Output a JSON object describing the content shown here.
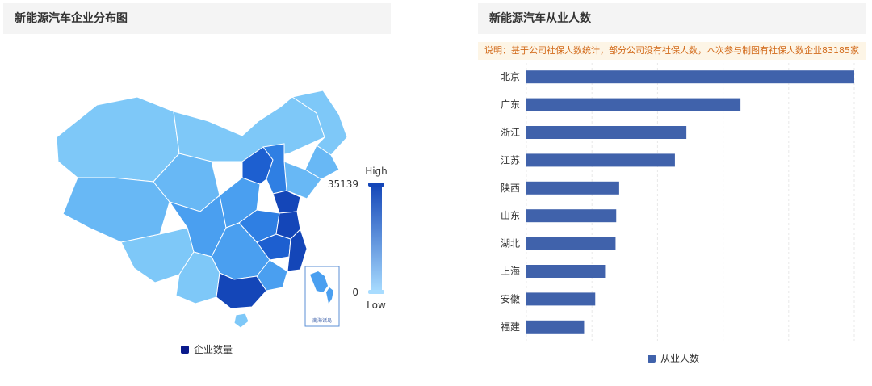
{
  "left_panel": {
    "title": "新能源汽车企业分布图",
    "legend_label": "企业数量",
    "legend_color": "#0a1a8c",
    "visual_map": {
      "high_label": "High",
      "low_label": "Low",
      "max": "35139",
      "min": "0",
      "color_high": "#1446b8",
      "color_low": "#a8dcff"
    },
    "inset_label": "南海诸岛",
    "map_colors": [
      "#7ec8f8",
      "#68b8f5",
      "#4a9ff0",
      "#2f7fe3",
      "#1d5fd0",
      "#1446b8"
    ]
  },
  "right_panel": {
    "title": "新能源汽车从业人数",
    "note": "说明：基于公司社保人数统计，部分公司没有社保人数，本次参与制图有社保人数企业83185家",
    "legend_label": "从业人数",
    "bar_color": "#4062ab"
  },
  "chart_data": [
    {
      "type": "map",
      "title": "新能源汽车企业分布图",
      "legend": [
        "企业数量"
      ],
      "visual_map": {
        "min": 0,
        "max": 35139,
        "labels": [
          "High",
          "Low"
        ]
      }
    },
    {
      "type": "bar",
      "orientation": "horizontal",
      "title": "新能源汽车从业人数",
      "categories": [
        "北京",
        "广东",
        "浙江",
        "江苏",
        "陕西",
        "山东",
        "湖北",
        "上海",
        "安徽",
        "福建"
      ],
      "series": [
        {
          "name": "从业人数",
          "values": [
            1000,
            653,
            488,
            453,
            283,
            274,
            272,
            240,
            210,
            176
          ]
        }
      ],
      "legend": [
        "从业人数"
      ]
    }
  ]
}
